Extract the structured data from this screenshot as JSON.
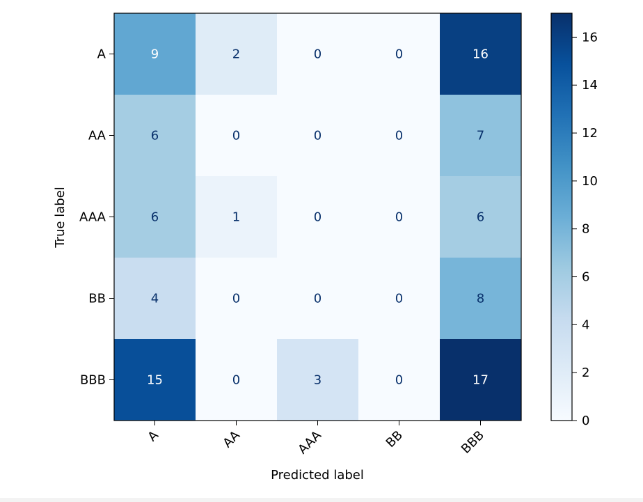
{
  "chart_data": {
    "type": "heatmap",
    "title": "",
    "xlabel": "Predicted label",
    "ylabel": "True label",
    "x_categories": [
      "A",
      "AA",
      "AAA",
      "BB",
      "BBB"
    ],
    "y_categories": [
      "A",
      "AA",
      "AAA",
      "BB",
      "BBB"
    ],
    "values": [
      [
        9,
        2,
        0,
        0,
        16
      ],
      [
        6,
        0,
        0,
        0,
        7
      ],
      [
        6,
        1,
        0,
        0,
        6
      ],
      [
        4,
        0,
        0,
        0,
        8
      ],
      [
        15,
        0,
        3,
        0,
        17
      ]
    ],
    "colormap": "Blues",
    "value_range": [
      0,
      17
    ],
    "colorbar_ticks": [
      "0",
      "2",
      "4",
      "6",
      "8",
      "10",
      "12",
      "14",
      "16"
    ],
    "grid": false
  }
}
